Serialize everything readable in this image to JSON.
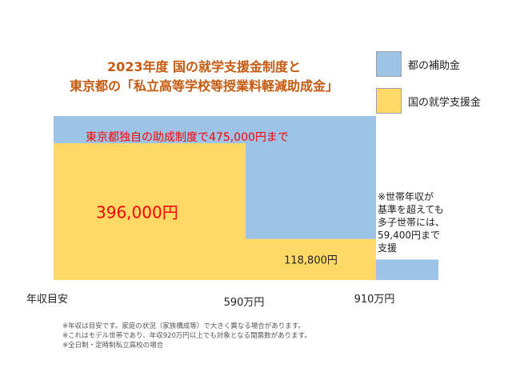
{
  "title_lines": [
    "2023年度 国の就学支援金制度と",
    "東京都の「私立高等学校等授業料軽減助成金」"
  ],
  "legend": [
    {
      "label": "都の補助金",
      "color": "#9dc3e6"
    },
    {
      "label": "国の就学支援金",
      "color": "#ffd966"
    }
  ],
  "chart_data": {
    "type": "bar",
    "x_axis_label": "年収目安",
    "x_ticks": [
      "590万円",
      "910万円"
    ],
    "scale_max": 475000,
    "segments": [
      {
        "income_band": "〜590万円",
        "kuni_value": 396000,
        "kuni_label": "396,000円",
        "tokyo_total": 475000
      },
      {
        "income_band": "590万円〜910万円",
        "kuni_value": 118800,
        "kuni_label": "118,800円",
        "tokyo_total": 475000
      },
      {
        "income_band": "910万円〜",
        "kuni_value": 0,
        "tokyo_total": 59400
      }
    ],
    "top_annotation": "東京都独自の助成制度で475,000円まで",
    "side_note": [
      "※世帯年収が",
      "基準を超えても",
      "多子世帯には、",
      "59,400円まで",
      "支援"
    ]
  },
  "colors": {
    "tokyo": "#9dc3e6",
    "kuni": "#ffd966",
    "accent_red": "#ff0000",
    "title": "#c55a11"
  },
  "footnotes": [
    "※年収は目安です。家庭の状況（家族構成等）で大きく異なる場合があります。",
    "※これはモデル世帯であり、年収920万円以上でも対象となる間票数があります。",
    "※全日制・定時制私立高校の場合"
  ]
}
